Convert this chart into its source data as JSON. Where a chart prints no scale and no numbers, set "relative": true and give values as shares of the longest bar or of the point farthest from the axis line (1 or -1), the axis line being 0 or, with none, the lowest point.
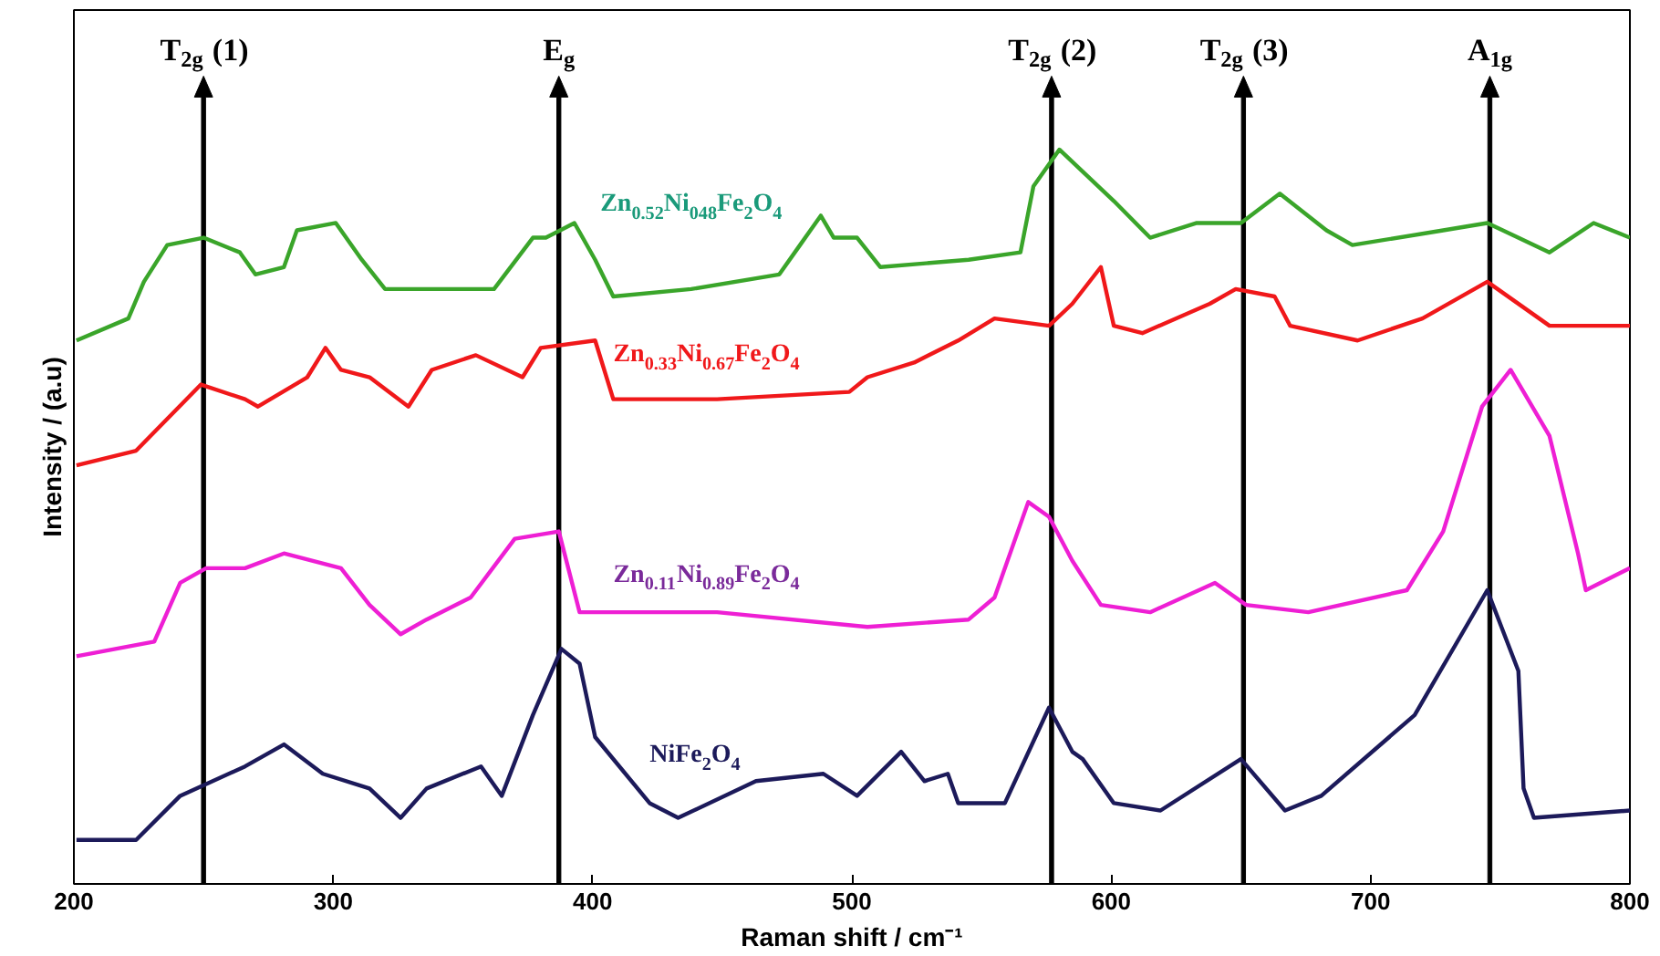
{
  "chart_data": {
    "type": "line",
    "xlabel": "Raman shift / cm⁻¹",
    "ylabel": "Intensity / (a.u)",
    "relative": true,
    "xlim": [
      200,
      800
    ],
    "xticks": [
      200,
      300,
      400,
      500,
      600,
      700,
      800
    ],
    "grid": false,
    "marker": "none",
    "line_style": "solid",
    "series": [
      {
        "name": "Zn$_{0.52}$Ni$_{048}$Fe$_{2}$O$_{4}$",
        "color": "#3aa52a",
        "x": [
          201,
          221,
          227,
          236,
          250,
          264,
          270,
          281,
          286,
          301,
          311,
          320,
          336,
          362,
          377,
          382,
          393,
          401,
          408,
          438,
          472,
          480,
          488,
          493,
          502,
          511,
          545,
          565,
          570,
          580,
          589,
          601,
          615,
          633,
          650,
          665,
          683,
          693,
          728,
          745,
          769,
          786,
          800
        ],
        "values": [
          0.74,
          0.77,
          0.82,
          0.87,
          0.88,
          0.86,
          0.83,
          0.84,
          0.89,
          0.9,
          0.85,
          0.81,
          0.81,
          0.81,
          0.88,
          0.88,
          0.9,
          0.85,
          0.8,
          0.81,
          0.83,
          0.87,
          0.91,
          0.88,
          0.88,
          0.84,
          0.85,
          0.86,
          0.95,
          1.0,
          0.97,
          0.93,
          0.88,
          0.9,
          0.9,
          0.94,
          0.89,
          0.87,
          0.89,
          0.9,
          0.86,
          0.9,
          0.88
        ]
      },
      {
        "name": "Zn$_{0.33}$Ni$_{0.67}$Fe$_{2}$O$_{4}$",
        "color": "#f0181a",
        "x": [
          201,
          224,
          249,
          266,
          271,
          290,
          297,
          303,
          314,
          329,
          338,
          355,
          373,
          380,
          401,
          408,
          448,
          499,
          506,
          524,
          541,
          555,
          576,
          585,
          596,
          601,
          612,
          638,
          648,
          663,
          669,
          695,
          720,
          745,
          769,
          800
        ],
        "values": [
          0.57,
          0.59,
          0.68,
          0.66,
          0.65,
          0.69,
          0.73,
          0.7,
          0.69,
          0.65,
          0.7,
          0.72,
          0.69,
          0.73,
          0.74,
          0.66,
          0.66,
          0.67,
          0.69,
          0.71,
          0.74,
          0.77,
          0.76,
          0.79,
          0.84,
          0.76,
          0.75,
          0.79,
          0.81,
          0.8,
          0.76,
          0.74,
          0.77,
          0.82,
          0.76,
          0.76
        ]
      },
      {
        "name": "Zn$_{0.11}$Ni$_{0.89}$Fe$_{2}$O$_{4}$",
        "color": "#ee1fd4",
        "x": [
          201,
          231,
          241,
          251,
          266,
          281,
          303,
          314,
          326,
          336,
          353,
          370,
          387,
          395,
          448,
          506,
          545,
          555,
          568,
          576,
          585,
          596,
          615,
          640,
          652,
          676,
          714,
          728,
          743,
          754,
          769,
          780,
          783,
          800
        ],
        "values": [
          0.31,
          0.33,
          0.41,
          0.43,
          0.43,
          0.45,
          0.43,
          0.38,
          0.34,
          0.36,
          0.39,
          0.47,
          0.48,
          0.37,
          0.37,
          0.35,
          0.36,
          0.39,
          0.52,
          0.5,
          0.44,
          0.38,
          0.37,
          0.41,
          0.38,
          0.37,
          0.4,
          0.48,
          0.65,
          0.7,
          0.61,
          0.45,
          0.4,
          0.43
        ]
      },
      {
        "name": "NiFe$_{2}$O$_{4}$",
        "color": "#1c1a5a",
        "x": [
          201,
          224,
          241,
          266,
          281,
          296,
          314,
          326,
          336,
          357,
          365,
          377,
          388,
          395,
          401,
          422,
          433,
          463,
          489,
          502,
          519,
          528,
          537,
          541,
          559,
          576,
          585,
          589,
          601,
          619,
          650,
          667,
          681,
          717,
          745,
          757,
          759,
          763,
          800
        ],
        "values": [
          0.06,
          0.06,
          0.12,
          0.16,
          0.19,
          0.15,
          0.13,
          0.09,
          0.13,
          0.16,
          0.12,
          0.23,
          0.32,
          0.3,
          0.2,
          0.11,
          0.09,
          0.14,
          0.15,
          0.12,
          0.18,
          0.14,
          0.15,
          0.11,
          0.11,
          0.24,
          0.18,
          0.17,
          0.11,
          0.1,
          0.17,
          0.1,
          0.12,
          0.23,
          0.4,
          0.29,
          0.13,
          0.09,
          0.1
        ]
      }
    ],
    "ref_lines": [
      {
        "axis": "x",
        "value": 250,
        "label": "T$_{2g}$ (1)",
        "color": "#000000"
      },
      {
        "axis": "x",
        "value": 387,
        "label": "E$_{g}$",
        "color": "#000000"
      },
      {
        "axis": "x",
        "value": 577,
        "label": "T$_{2g}$ (2)",
        "color": "#000000"
      },
      {
        "axis": "x",
        "value": 651,
        "label": "T$_{2g}$ (3)",
        "color": "#000000"
      },
      {
        "axis": "x",
        "value": 746,
        "label": "A$_{1g}$",
        "color": "#000000"
      }
    ]
  }
}
